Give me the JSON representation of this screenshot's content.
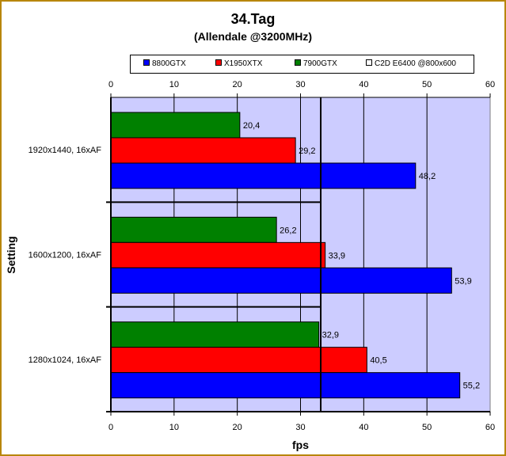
{
  "chart_data": {
    "type": "bar",
    "orientation": "horizontal",
    "title": "34.Tag",
    "subtitle": "(Allendale @3200MHz)",
    "xlabel": "fps",
    "ylabel": "Setting",
    "xlim": [
      0,
      60
    ],
    "xticks": [
      0,
      10,
      20,
      30,
      40,
      50,
      60
    ],
    "categories": [
      "1920x1440, 16xAF",
      "1600x1200, 16xAF",
      "1280x1024, 16xAF"
    ],
    "series": [
      {
        "name": "8800GTX",
        "color": "#0000ff",
        "values": [
          48.2,
          53.9,
          55.2
        ],
        "labels": [
          "48,2",
          "53,9",
          "55,2"
        ]
      },
      {
        "name": "X1950XTX",
        "color": "#ff0000",
        "values": [
          29.2,
          33.9,
          40.5
        ],
        "labels": [
          "29,2",
          "33,9",
          "40,5"
        ]
      },
      {
        "name": "7900GTX",
        "color": "#008000",
        "values": [
          20.4,
          26.2,
          32.9
        ],
        "labels": [
          "20,4",
          "26,2",
          "32,9"
        ]
      }
    ],
    "reference": {
      "name": "C2D E6400 @800x600",
      "color": "#ffffff",
      "value": 33.2
    },
    "grid": "vertical",
    "plot_background": "#ccccff",
    "legend_position": "top"
  }
}
